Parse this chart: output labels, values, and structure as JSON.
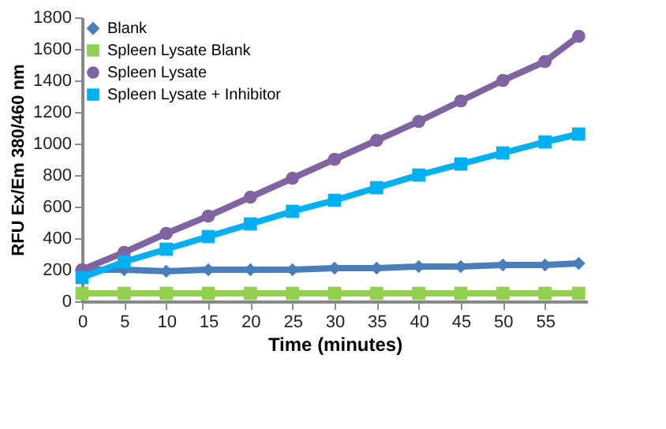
{
  "chart_data": {
    "type": "line",
    "xlabel": "Time (minutes)",
    "ylabel": "RFU Ex/Em 380/460 nm",
    "x": [
      0,
      5,
      10,
      15,
      20,
      25,
      30,
      35,
      40,
      45,
      50,
      55,
      59
    ],
    "xlim": [
      0,
      60
    ],
    "xticks": [
      0,
      5,
      10,
      15,
      20,
      25,
      30,
      35,
      40,
      45,
      50,
      55
    ],
    "ylim": [
      0,
      1800
    ],
    "yticks": [
      0,
      200,
      400,
      600,
      800,
      1000,
      1200,
      1400,
      1600,
      1800
    ],
    "grid": false,
    "legend": "top left",
    "series": [
      {
        "name": "Blank",
        "color": "#4a7ebb",
        "marker": "diamond",
        "values": [
          200,
          200,
          190,
          200,
          200,
          200,
          210,
          210,
          220,
          220,
          230,
          230,
          240
        ]
      },
      {
        "name": "Spleen Lysate Blank",
        "color": "#92d050",
        "marker": "square",
        "values": [
          50,
          50,
          50,
          50,
          50,
          50,
          50,
          50,
          50,
          50,
          50,
          50,
          50
        ]
      },
      {
        "name": "Spleen Lysate",
        "color": "#8064a2",
        "marker": "circle",
        "values": [
          200,
          310,
          430,
          540,
          660,
          780,
          900,
          1020,
          1140,
          1270,
          1400,
          1520,
          1680
        ]
      },
      {
        "name": "Spleen Lysate + Inhibitor",
        "color": "#00b0f0",
        "marker": "square",
        "values": [
          150,
          250,
          330,
          410,
          490,
          570,
          640,
          720,
          800,
          870,
          940,
          1010,
          1060
        ]
      }
    ]
  }
}
